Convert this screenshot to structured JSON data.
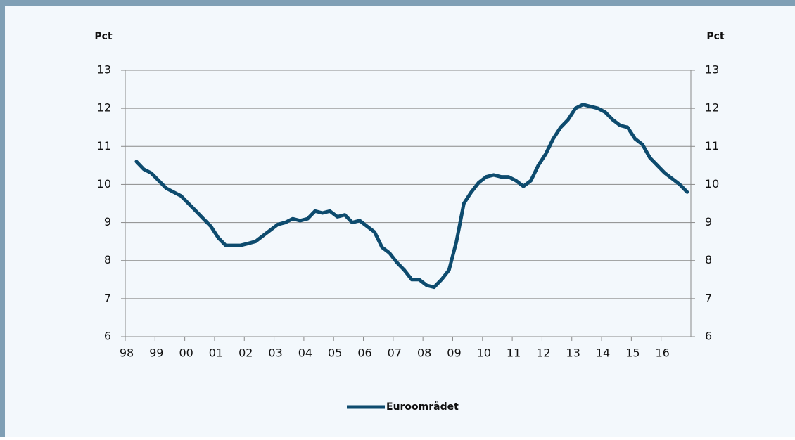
{
  "chart_data": {
    "type": "line",
    "y_label": "Pct",
    "y2_label": "Pct",
    "categories": [
      "98",
      null,
      null,
      null,
      "99",
      null,
      null,
      null,
      "00",
      null,
      null,
      null,
      "01",
      null,
      null,
      null,
      "02",
      null,
      null,
      null,
      "03",
      null,
      null,
      null,
      "04",
      null,
      null,
      null,
      "05",
      null,
      null,
      null,
      "06",
      null,
      null,
      null,
      "07",
      null,
      null,
      null,
      "08",
      null,
      null,
      null,
      "09",
      null,
      null,
      null,
      "10",
      null,
      null,
      null,
      "11",
      null,
      null,
      null,
      "12",
      null,
      null,
      null,
      "13",
      null,
      null,
      null,
      "14",
      null,
      null,
      null,
      "15",
      null,
      null,
      null,
      "16",
      null,
      null,
      null
    ],
    "series": [
      {
        "name": "Euroområdet",
        "color": "#0d4b6e",
        "values": [
          null,
          10.6,
          10.4,
          10.3,
          10.1,
          9.9,
          9.8,
          9.7,
          9.5,
          9.3,
          9.1,
          8.9,
          8.6,
          8.4,
          8.4,
          8.4,
          8.45,
          8.5,
          8.65,
          8.8,
          8.95,
          9.0,
          9.1,
          9.05,
          9.1,
          9.3,
          9.25,
          9.3,
          9.15,
          9.2,
          9.0,
          9.05,
          8.9,
          8.75,
          8.35,
          8.2,
          7.95,
          7.75,
          7.5,
          7.5,
          7.35,
          7.3,
          7.5,
          7.75,
          8.5,
          9.5,
          9.8,
          10.05,
          10.2,
          10.25,
          10.2,
          10.2,
          10.1,
          9.95,
          10.1,
          10.5,
          10.8,
          11.2,
          11.5,
          11.7,
          12.0,
          12.1,
          12.05,
          12.0,
          11.9,
          11.7,
          11.55,
          11.5,
          11.2,
          11.05,
          10.7,
          10.5,
          10.3,
          10.15,
          10.0,
          9.8
        ]
      }
    ],
    "ylim": [
      6,
      13
    ],
    "yticks": [
      6,
      7,
      8,
      9,
      10,
      11,
      12,
      13
    ],
    "y2lim": [
      6,
      13
    ],
    "y2ticks": [
      6,
      7,
      8,
      9,
      10,
      11,
      12,
      13
    ],
    "grid": true,
    "legend": "bottom"
  }
}
